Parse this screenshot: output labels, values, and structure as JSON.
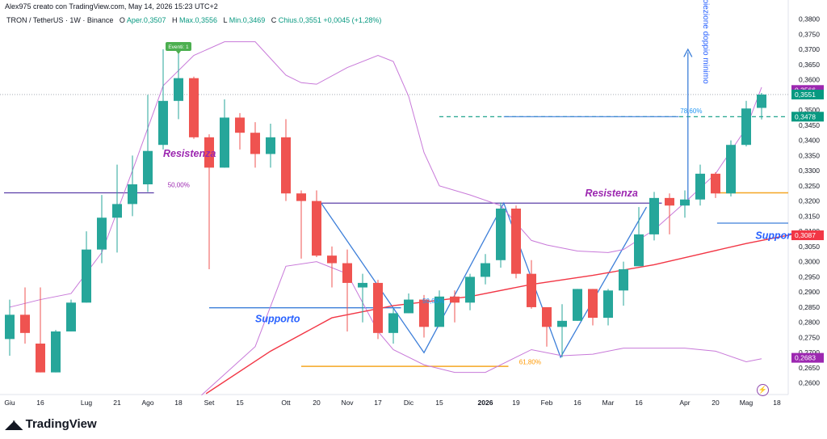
{
  "header": {
    "text": "Alex975 creato con TradingView.com, May 14, 2026 15:23 UTC+2"
  },
  "legend": {
    "symbol": "TRON / TetherUS · 1W · Binance",
    "open_label": "O",
    "open": "Aper.0,3507",
    "high_label": "H",
    "high": "Max.0,3556",
    "low_label": "L",
    "low": "Min.0,3469",
    "close_label": "C",
    "close": "Chius.0,3551",
    "change": "+0,0045 (+1,28%)"
  },
  "brand": {
    "name": "TradingView",
    "logo_icon": "tradingview-logo-icon"
  },
  "chart_data": {
    "type": "candlestick",
    "y_axis": {
      "range": [
        0.257,
        0.382
      ],
      "ticks": [
        "0,2600",
        "0,2650",
        "0,2700",
        "0,2750",
        "0,2800",
        "0,2850",
        "0,2900",
        "0,2950",
        "0,3000",
        "0,3050",
        "0,3100",
        "0,3150",
        "0,3200",
        "0,3250",
        "0,3300",
        "0,3350",
        "0,3400",
        "0,3450",
        "0,3500",
        "0,3550",
        "0,3600",
        "0,3650",
        "0,3700",
        "0,3750",
        "0,3800"
      ],
      "position": "right"
    },
    "x_axis": {
      "ticks": [
        {
          "label": "Giu",
          "i": 0
        },
        {
          "label": "16",
          "i": 2
        },
        {
          "label": "Lug",
          "i": 5
        },
        {
          "label": "21",
          "i": 7
        },
        {
          "label": "Ago",
          "i": 9
        },
        {
          "label": "18",
          "i": 11
        },
        {
          "label": "Set",
          "i": 13
        },
        {
          "label": "15",
          "i": 15
        },
        {
          "label": "Ott",
          "i": 18
        },
        {
          "label": "20",
          "i": 20
        },
        {
          "label": "Nov",
          "i": 22
        },
        {
          "label": "17",
          "i": 24
        },
        {
          "label": "Dic",
          "i": 26
        },
        {
          "label": "15",
          "i": 28
        },
        {
          "label": "2026",
          "i": 31,
          "bold": true
        },
        {
          "label": "19",
          "i": 33
        },
        {
          "label": "Feb",
          "i": 35
        },
        {
          "label": "16",
          "i": 37
        },
        {
          "label": "Mar",
          "i": 39
        },
        {
          "label": "16",
          "i": 41
        },
        {
          "label": "Apr",
          "i": 44
        },
        {
          "label": "20",
          "i": 46
        },
        {
          "label": "Mag",
          "i": 48
        },
        {
          "label": "18",
          "i": 50
        }
      ]
    },
    "candles": [
      {
        "o": 0.2745,
        "h": 0.2875,
        "l": 0.269,
        "c": 0.2825
      },
      {
        "o": 0.2825,
        "h": 0.2915,
        "l": 0.273,
        "c": 0.2765
      },
      {
        "o": 0.273,
        "h": 0.2915,
        "l": 0.2635,
        "c": 0.2635
      },
      {
        "o": 0.2635,
        "h": 0.2775,
        "l": 0.2635,
        "c": 0.277
      },
      {
        "o": 0.277,
        "h": 0.2875,
        "l": 0.277,
        "c": 0.2865
      },
      {
        "o": 0.2865,
        "h": 0.31,
        "l": 0.2865,
        "c": 0.304
      },
      {
        "o": 0.304,
        "h": 0.322,
        "l": 0.2995,
        "c": 0.3145
      },
      {
        "o": 0.3145,
        "h": 0.332,
        "l": 0.303,
        "c": 0.319
      },
      {
        "o": 0.319,
        "h": 0.335,
        "l": 0.315,
        "c": 0.3255
      },
      {
        "o": 0.3255,
        "h": 0.355,
        "l": 0.323,
        "c": 0.3365
      },
      {
        "o": 0.3385,
        "h": 0.37,
        "l": 0.337,
        "c": 0.353
      },
      {
        "o": 0.353,
        "h": 0.3695,
        "l": 0.347,
        "c": 0.3605
      },
      {
        "o": 0.3605,
        "h": 0.361,
        "l": 0.3405,
        "c": 0.341
      },
      {
        "o": 0.341,
        "h": 0.342,
        "l": 0.2975,
        "c": 0.331
      },
      {
        "o": 0.331,
        "h": 0.3535,
        "l": 0.331,
        "c": 0.3475
      },
      {
        "o": 0.3475,
        "h": 0.349,
        "l": 0.337,
        "c": 0.3425
      },
      {
        "o": 0.3425,
        "h": 0.346,
        "l": 0.331,
        "c": 0.3355
      },
      {
        "o": 0.3355,
        "h": 0.3455,
        "l": 0.331,
        "c": 0.341
      },
      {
        "o": 0.341,
        "h": 0.347,
        "l": 0.32,
        "c": 0.3225
      },
      {
        "o": 0.3225,
        "h": 0.3235,
        "l": 0.301,
        "c": 0.32
      },
      {
        "o": 0.32,
        "h": 0.3235,
        "l": 0.3015,
        "c": 0.302
      },
      {
        "o": 0.302,
        "h": 0.305,
        "l": 0.2915,
        "c": 0.2995
      },
      {
        "o": 0.2995,
        "h": 0.304,
        "l": 0.277,
        "c": 0.293
      },
      {
        "o": 0.2915,
        "h": 0.296,
        "l": 0.28,
        "c": 0.293
      },
      {
        "o": 0.293,
        "h": 0.294,
        "l": 0.2745,
        "c": 0.2765
      },
      {
        "o": 0.2765,
        "h": 0.2845,
        "l": 0.273,
        "c": 0.283
      },
      {
        "o": 0.283,
        "h": 0.2895,
        "l": 0.283,
        "c": 0.2875
      },
      {
        "o": 0.2875,
        "h": 0.289,
        "l": 0.275,
        "c": 0.2785
      },
      {
        "o": 0.2785,
        "h": 0.2905,
        "l": 0.2785,
        "c": 0.2885
      },
      {
        "o": 0.2885,
        "h": 0.2905,
        "l": 0.28,
        "c": 0.2865
      },
      {
        "o": 0.2865,
        "h": 0.296,
        "l": 0.284,
        "c": 0.295
      },
      {
        "o": 0.295,
        "h": 0.3025,
        "l": 0.2925,
        "c": 0.2995
      },
      {
        "o": 0.3005,
        "h": 0.3195,
        "l": 0.298,
        "c": 0.3175
      },
      {
        "o": 0.3175,
        "h": 0.3185,
        "l": 0.2945,
        "c": 0.296
      },
      {
        "o": 0.296,
        "h": 0.3005,
        "l": 0.2845,
        "c": 0.285
      },
      {
        "o": 0.285,
        "h": 0.285,
        "l": 0.272,
        "c": 0.2785
      },
      {
        "o": 0.2785,
        "h": 0.286,
        "l": 0.2685,
        "c": 0.2805
      },
      {
        "o": 0.2805,
        "h": 0.291,
        "l": 0.2805,
        "c": 0.291
      },
      {
        "o": 0.291,
        "h": 0.291,
        "l": 0.279,
        "c": 0.2815
      },
      {
        "o": 0.2815,
        "h": 0.291,
        "l": 0.279,
        "c": 0.2905
      },
      {
        "o": 0.2905,
        "h": 0.3,
        "l": 0.2855,
        "c": 0.2975
      },
      {
        "o": 0.2985,
        "h": 0.318,
        "l": 0.2985,
        "c": 0.309
      },
      {
        "o": 0.309,
        "h": 0.323,
        "l": 0.307,
        "c": 0.321
      },
      {
        "o": 0.321,
        "h": 0.3225,
        "l": 0.309,
        "c": 0.3185
      },
      {
        "o": 0.3185,
        "h": 0.3235,
        "l": 0.3145,
        "c": 0.3205
      },
      {
        "o": 0.3205,
        "h": 0.332,
        "l": 0.3185,
        "c": 0.329
      },
      {
        "o": 0.329,
        "h": 0.3295,
        "l": 0.321,
        "c": 0.3225
      },
      {
        "o": 0.3225,
        "h": 0.34,
        "l": 0.3215,
        "c": 0.3385
      },
      {
        "o": 0.3385,
        "h": 0.353,
        "l": 0.338,
        "c": 0.3505
      },
      {
        "o": 0.3507,
        "h": 0.3556,
        "l": 0.3469,
        "c": 0.3551
      }
    ],
    "ma_red": [
      [
        12.8,
        0.2565
      ],
      [
        17,
        0.2705
      ],
      [
        21,
        0.2815
      ],
      [
        25,
        0.2855
      ],
      [
        30,
        0.2885
      ],
      [
        34,
        0.2925
      ],
      [
        38,
        0.2955
      ],
      [
        42,
        0.299
      ],
      [
        45,
        0.3025
      ],
      [
        48,
        0.306
      ],
      [
        51,
        0.309
      ]
    ],
    "bb_upper": [
      [
        0,
        0.285
      ],
      [
        2,
        0.2875
      ],
      [
        4,
        0.2895
      ],
      [
        6,
        0.303
      ],
      [
        8,
        0.33
      ],
      [
        10,
        0.358
      ],
      [
        12,
        0.368
      ],
      [
        14,
        0.3725
      ],
      [
        16,
        0.3725
      ],
      [
        18,
        0.3615
      ],
      [
        19,
        0.359
      ],
      [
        20,
        0.3585
      ],
      [
        22,
        0.364
      ],
      [
        24,
        0.368
      ],
      [
        25,
        0.366
      ],
      [
        26,
        0.3545
      ],
      [
        27,
        0.336
      ],
      [
        28,
        0.325
      ],
      [
        30,
        0.322
      ],
      [
        32,
        0.3185
      ],
      [
        34,
        0.307
      ],
      [
        35,
        0.3055
      ],
      [
        37,
        0.3035
      ],
      [
        39,
        0.303
      ],
      [
        40,
        0.304
      ],
      [
        42,
        0.3105
      ],
      [
        44,
        0.3195
      ],
      [
        46,
        0.329
      ],
      [
        48,
        0.344
      ],
      [
        49,
        0.3575
      ]
    ],
    "bb_lower": [
      [
        12.5,
        0.256
      ],
      [
        16,
        0.272
      ],
      [
        18,
        0.2985
      ],
      [
        20,
        0.3
      ],
      [
        22,
        0.296
      ],
      [
        24,
        0.277
      ],
      [
        25,
        0.271
      ],
      [
        27,
        0.266
      ],
      [
        29,
        0.2635
      ],
      [
        31,
        0.2635
      ],
      [
        33,
        0.2685
      ],
      [
        34,
        0.271
      ],
      [
        36,
        0.269
      ],
      [
        38,
        0.2695
      ],
      [
        40,
        0.2715
      ],
      [
        42,
        0.2715
      ],
      [
        44,
        0.2715
      ],
      [
        46,
        0.2705
      ],
      [
        48,
        0.267
      ],
      [
        49,
        0.268
      ]
    ],
    "price_labels": [
      {
        "value": 0.3566,
        "text": "0,3566",
        "bg": "#9c27b0"
      },
      {
        "value": 0.3551,
        "text": "0,3551",
        "bg": "#089981"
      },
      {
        "value": 0.3478,
        "text": "0,3478",
        "bg": "#089981"
      },
      {
        "value": 0.3087,
        "text": "0,3087",
        "bg": "#f23645"
      },
      {
        "value": 0.2683,
        "text": "0,2683",
        "bg": "#9c27b0"
      }
    ],
    "annotations": [
      {
        "text": "Resistenza",
        "x": 10,
        "y": 0.3345,
        "color": "#9c27b0"
      },
      {
        "text": "Resistenza",
        "x": 37.5,
        "y": 0.3215,
        "color": "#9c27b0"
      },
      {
        "text": "Supporto",
        "x": 16,
        "y": 0.28,
        "color": "#2962ff"
      },
      {
        "text": "Supporto",
        "x": 48.6,
        "y": 0.3075,
        "color": "#2962ff"
      },
      {
        "text": "Proiezione doppio minimo",
        "x": 45.2,
        "y": 0.348,
        "color": "#2962ff",
        "vertical": true
      },
      {
        "text": "50,00%",
        "x": 10.3,
        "y": 0.3245,
        "color": "#9c27b0"
      },
      {
        "text": "78,60%",
        "x": 43.7,
        "y": 0.349,
        "color": "#2196f3"
      },
      {
        "text": "61,80%",
        "x": 33.2,
        "y": 0.2662,
        "color": "#ff9800"
      },
      {
        "text": "50,00%",
        "x": 26.9,
        "y": 0.2863,
        "color": "#2196f3"
      }
    ],
    "event_label": "Eventi: 1",
    "event_color": "#4caf50",
    "colors": {
      "up": "#26a69a",
      "down": "#ef5350",
      "ma": "#f23645",
      "bb": "#c879d9",
      "blue": "#3d7fd9",
      "purple": "#5b3fa8",
      "orange": "#f5a623",
      "green_dash": "#089981"
    }
  }
}
